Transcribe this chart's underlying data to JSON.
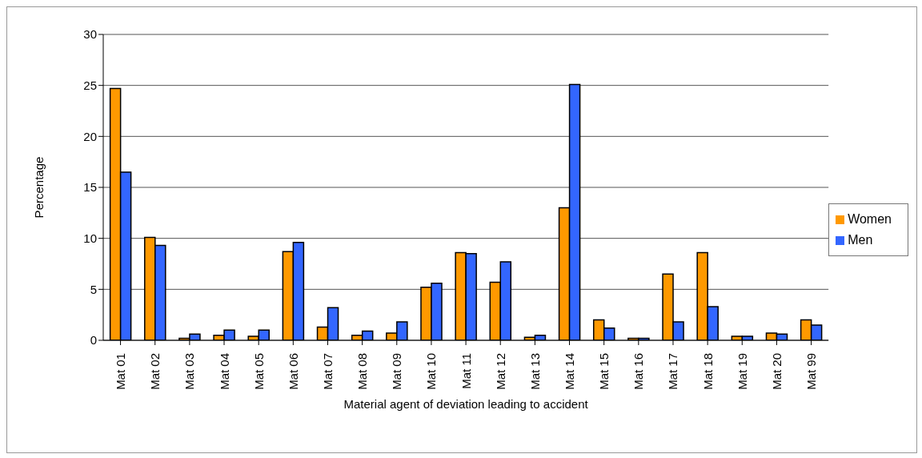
{
  "chart_data": {
    "type": "bar",
    "xlabel": "Material agent of deviation leading to accident",
    "ylabel": "Percentage",
    "categories": [
      "Mat 01",
      "Mat 02",
      "Mat 03",
      "Mat 04",
      "Mat 05",
      "Mat 06",
      "Mat 07",
      "Mat 08",
      "Mat 09",
      "Mat 10",
      "Mat 11",
      "Mat 12",
      "Mat 13",
      "Mat 14",
      "Mat 15",
      "Mat 16",
      "Mat 17",
      "Mat 18",
      "Mat 19",
      "Mat 20",
      "Mat 99"
    ],
    "series": [
      {
        "name": "Women",
        "color": "#ff9900",
        "values": [
          24.7,
          10.1,
          0.2,
          0.5,
          0.4,
          8.7,
          1.3,
          0.5,
          0.7,
          5.2,
          8.6,
          5.7,
          0.3,
          13.0,
          2.0,
          0.2,
          6.5,
          8.6,
          0.4,
          0.7,
          2.0
        ]
      },
      {
        "name": "Men",
        "color": "#3366ff",
        "values": [
          16.5,
          9.3,
          0.6,
          1.0,
          1.0,
          9.6,
          3.2,
          0.9,
          1.8,
          5.6,
          8.5,
          7.7,
          0.5,
          25.1,
          1.2,
          0.2,
          1.8,
          3.3,
          0.4,
          0.6,
          1.5
        ]
      }
    ],
    "ylim": [
      0,
      30
    ],
    "yticks": [
      0,
      5,
      10,
      15,
      20,
      25,
      30
    ],
    "grid": "y",
    "legend": "right"
  }
}
